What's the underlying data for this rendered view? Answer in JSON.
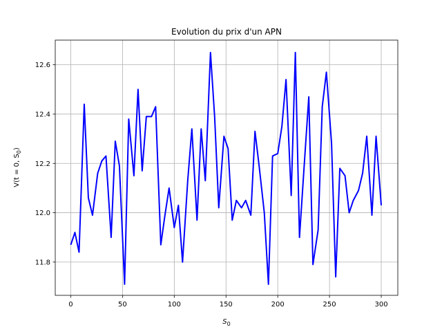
{
  "chart_data": {
    "type": "line",
    "title": "Evolution du prix d'un APN",
    "xlabel_base": "S",
    "xlabel_sub": "0",
    "ylabel_parts": {
      "prefix": "V(t = 0, S",
      "sub": "0",
      "suffix": ")"
    },
    "xlim": [
      -15,
      316
    ],
    "ylim": [
      11.665,
      12.7
    ],
    "xticks": [
      0,
      50,
      100,
      150,
      200,
      250,
      300
    ],
    "yticks": [
      11.8,
      12.0,
      12.2,
      12.4,
      12.6
    ],
    "ytick_labels": [
      "11.8",
      "12.0",
      "12.2",
      "12.4",
      "12.6"
    ],
    "grid": true,
    "series": [
      {
        "color": "#0000ff",
        "x": [
          0,
          4,
          8,
          13,
          17,
          21,
          26,
          30,
          34,
          39,
          43,
          47,
          52,
          56,
          61,
          65,
          69,
          73,
          78,
          82,
          87,
          91,
          95,
          100,
          104,
          108,
          113,
          117,
          122,
          126,
          130,
          135,
          139,
          143,
          148,
          152,
          156,
          160,
          165,
          169,
          174,
          178,
          182,
          187,
          191,
          195,
          200,
          204,
          208,
          213,
          217,
          221,
          226,
          230,
          234,
          239,
          243,
          247,
          252,
          256,
          260,
          265,
          269,
          273,
          278,
          282,
          286,
          291,
          295,
          300
        ],
        "y": [
          11.87,
          11.92,
          11.84,
          12.44,
          12.06,
          11.99,
          12.16,
          12.21,
          12.23,
          11.9,
          12.29,
          12.19,
          11.71,
          12.38,
          12.15,
          12.5,
          12.17,
          12.39,
          12.39,
          12.43,
          11.87,
          11.99,
          12.1,
          11.94,
          12.03,
          11.8,
          12.13,
          12.34,
          11.97,
          12.34,
          12.13,
          12.65,
          12.39,
          12.02,
          12.31,
          12.26,
          11.97,
          12.05,
          12.02,
          12.05,
          11.99,
          12.33,
          12.19,
          12.0,
          11.71,
          12.23,
          12.24,
          12.35,
          12.54,
          12.07,
          12.65,
          11.9,
          12.22,
          12.47,
          11.79,
          11.93,
          12.43,
          12.57,
          12.28,
          11.74,
          12.18,
          12.15,
          12.0,
          12.05,
          12.09,
          12.16,
          12.31,
          11.99,
          12.31,
          12.03
        ]
      }
    ]
  }
}
